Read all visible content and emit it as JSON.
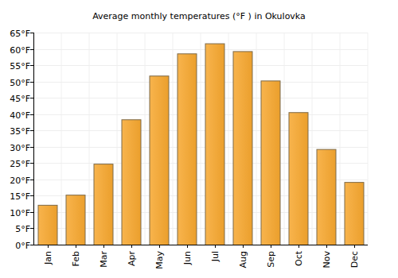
{
  "chart_data": {
    "type": "bar",
    "title": "Average monthly temperatures (°F ) in Okulovka",
    "categories": [
      "Jan",
      "Feb",
      "Mar",
      "Apr",
      "May",
      "Jun",
      "Jul",
      "Aug",
      "Sep",
      "Oct",
      "Nov",
      "Dec"
    ],
    "values": [
      12.2,
      15.3,
      24.8,
      38.4,
      51.8,
      58.6,
      61.7,
      59.3,
      50.3,
      40.6,
      29.3,
      19.2
    ],
    "color": "#f7a72e",
    "ylim": [
      0,
      65
    ],
    "yticks": [
      {
        "value": 0,
        "label": "0°F"
      },
      {
        "value": 5,
        "label": "5°F"
      },
      {
        "value": 10,
        "label": "10°F"
      },
      {
        "value": 15,
        "label": "15°F"
      },
      {
        "value": 20,
        "label": "20°F"
      },
      {
        "value": 25,
        "label": "25°F"
      },
      {
        "value": 30,
        "label": "30°F"
      },
      {
        "value": 35,
        "label": "35°F"
      },
      {
        "value": 40,
        "label": "40°F"
      },
      {
        "value": 45,
        "label": "45°F"
      },
      {
        "value": 50,
        "label": "50°F"
      },
      {
        "value": 55,
        "label": "55°F"
      },
      {
        "value": 60,
        "label": "60°F"
      },
      {
        "value": 65,
        "label": "65°F"
      }
    ],
    "grid": true
  }
}
